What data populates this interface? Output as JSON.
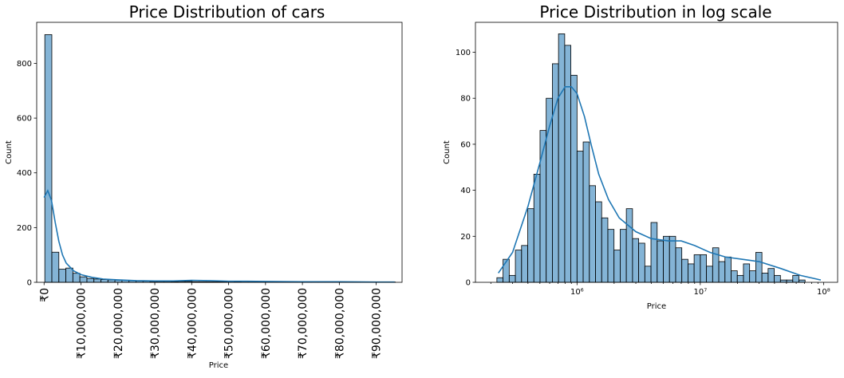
{
  "chart_data": [
    {
      "type": "histogram",
      "title": "Price Distribution of cars",
      "xlabel": "Price",
      "ylabel": "Count",
      "xscale": "linear",
      "xlim": [
        -2000000,
        97000000
      ],
      "ylim": [
        0,
        950
      ],
      "yticks": [
        0,
        200,
        400,
        600,
        800
      ],
      "xticks": [
        0,
        10000000,
        20000000,
        30000000,
        40000000,
        50000000,
        60000000,
        70000000,
        80000000,
        90000000
      ],
      "xtick_labels": [
        "₹0",
        "₹10,000,000",
        "₹20,000,000",
        "₹30,000,000",
        "₹40,000,000",
        "₹50,000,000",
        "₹60,000,000",
        "₹70,000,000",
        "₹80,000,000",
        "₹90,000,000"
      ],
      "bin_start": 200000,
      "bin_width": 1900000,
      "counts": [
        905,
        110,
        48,
        52,
        33,
        20,
        14,
        12,
        10,
        9,
        8,
        7,
        6,
        5,
        4,
        3,
        3,
        3,
        2,
        3,
        3,
        2,
        2,
        2,
        2,
        2,
        1,
        2,
        1,
        1,
        1,
        1,
        1,
        1,
        1,
        1,
        1,
        1,
        1,
        1,
        1,
        1,
        1,
        1,
        1,
        1,
        1,
        1,
        1,
        1
      ],
      "kde": {
        "x": [
          0,
          1000000,
          2000000,
          3000000,
          4000000,
          5000000,
          6000000,
          8000000,
          10000000,
          13000000,
          16000000,
          20000000,
          25000000,
          30000000,
          35000000,
          40000000,
          45000000,
          50000000,
          55000000,
          60000000,
          70000000,
          80000000,
          90000000,
          95000000
        ],
        "y": [
          310,
          335,
          300,
          220,
          150,
          100,
          70,
          42,
          28,
          18,
          12,
          9,
          6,
          5,
          5,
          7,
          6,
          4,
          4,
          3,
          2,
          2,
          1,
          1
        ]
      },
      "colors": {
        "bar": "#1f77b4",
        "line": "#1f77b4"
      }
    },
    {
      "type": "histogram",
      "title": "Price Distribution in log scale",
      "xlabel": "Price",
      "ylabel": "Count",
      "xscale": "log",
      "xlim": [
        150000,
        130000000
      ],
      "ylim": [
        0,
        113
      ],
      "yticks": [
        0,
        20,
        40,
        60,
        80,
        100
      ],
      "xticks": [
        1000000,
        10000000,
        100000000
      ],
      "xtick_labels": [
        "10⁶",
        "10⁷",
        "10⁸"
      ],
      "log_bin_start": 5.35,
      "log_bin_width": 0.05,
      "counts": [
        2,
        10,
        3,
        14,
        16,
        32,
        47,
        66,
        80,
        95,
        108,
        103,
        90,
        57,
        61,
        42,
        35,
        28,
        23,
        14,
        23,
        32,
        19,
        17,
        7,
        26,
        18,
        20,
        20,
        15,
        10,
        8,
        12,
        12,
        7,
        15,
        9,
        11,
        5,
        3,
        8,
        5,
        13,
        4,
        6,
        3,
        1,
        1,
        3,
        1
      ],
      "kde": {
        "x": [
          230000,
          300000,
          400000,
          500000,
          600000,
          700000,
          800000,
          900000,
          1000000,
          1150000,
          1300000,
          1500000,
          1800000,
          2200000,
          3000000,
          4000000,
          5500000,
          7000000,
          9000000,
          12000000,
          16000000,
          22000000,
          30000000,
          45000000,
          65000000,
          95000000
        ],
        "y": [
          4,
          13,
          33,
          52,
          68,
          80,
          85,
          85,
          82,
          72,
          60,
          47,
          36,
          28,
          22,
          19,
          18,
          18,
          16,
          13,
          11,
          10,
          9,
          6,
          3,
          1
        ]
      },
      "colors": {
        "bar": "#1f77b4",
        "line": "#1f77b4"
      }
    }
  ]
}
